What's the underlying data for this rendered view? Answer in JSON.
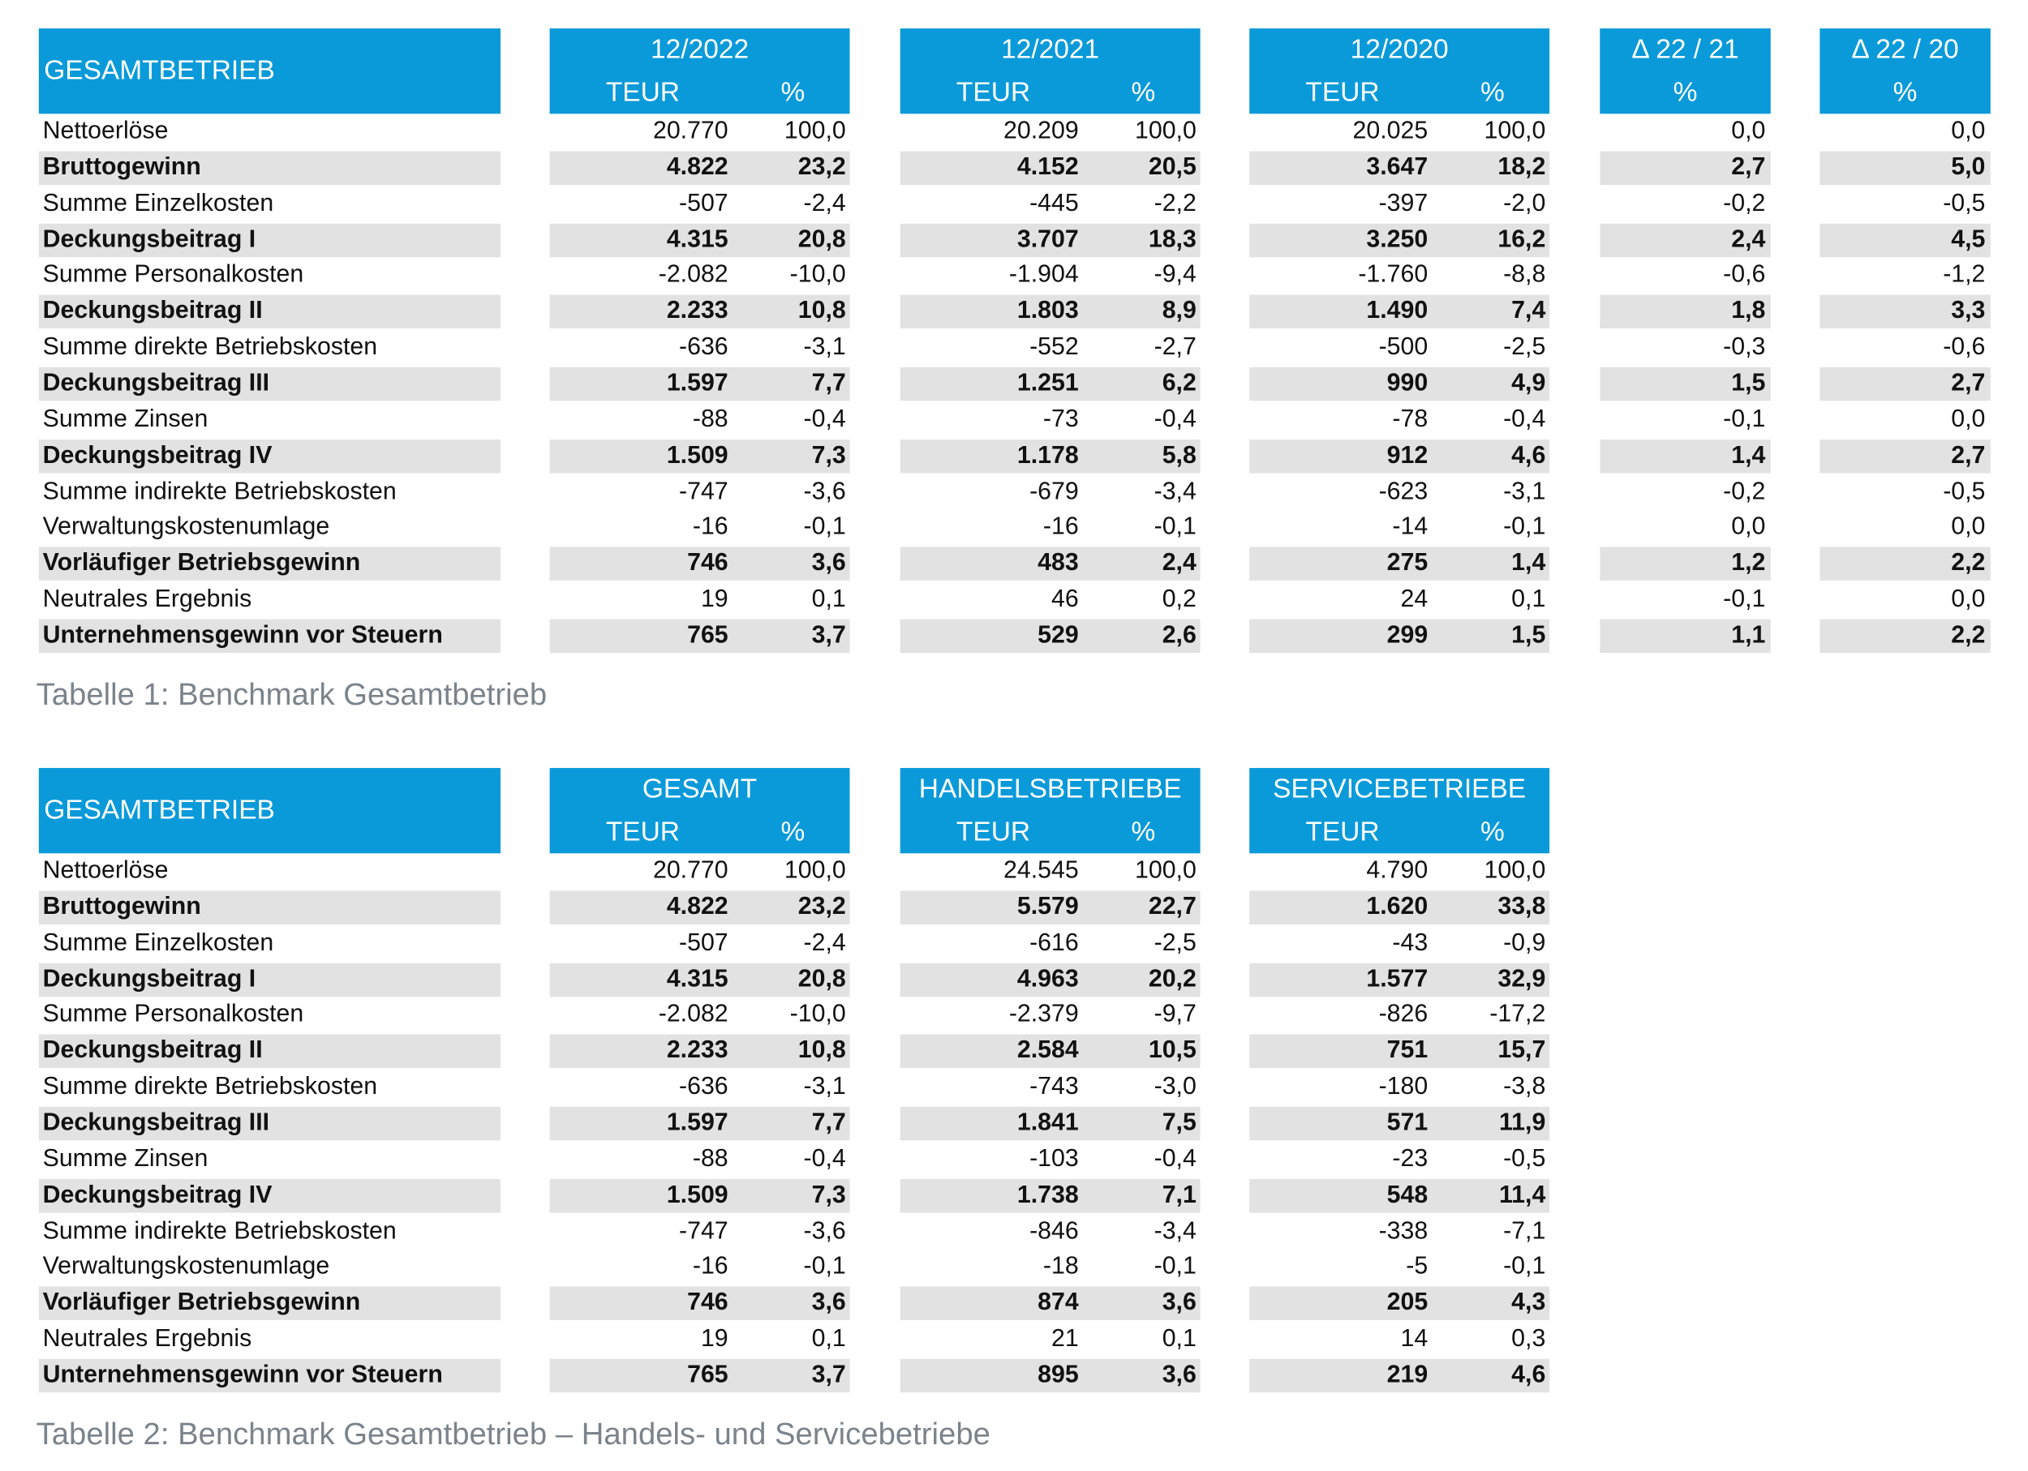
{
  "tables": [
    {
      "label": "GESAMTBETRIEB",
      "groups": [
        {
          "title": "12/2022",
          "columns": [
            "TEUR",
            "%"
          ]
        },
        {
          "title": "12/2021",
          "columns": [
            "TEUR",
            "%"
          ]
        },
        {
          "title": "12/2020",
          "columns": [
            "TEUR",
            "%"
          ]
        },
        {
          "title": "Δ 22 / 21",
          "columns": [
            "%"
          ]
        },
        {
          "title": "Δ 22 / 20",
          "columns": [
            "%"
          ]
        }
      ],
      "rows": [
        {
          "label": "Nettoerlöse",
          "bold": false,
          "values": [
            "20.770",
            "100,0",
            "20.209",
            "100,0",
            "20.025",
            "100,0",
            "0,0",
            "0,0"
          ]
        },
        {
          "label": "Bruttogewinn",
          "bold": true,
          "values": [
            "4.822",
            "23,2",
            "4.152",
            "20,5",
            "3.647",
            "18,2",
            "2,7",
            "5,0"
          ]
        },
        {
          "label": "Summe Einzelkosten",
          "bold": false,
          "values": [
            "-507",
            "-2,4",
            "-445",
            "-2,2",
            "-397",
            "-2,0",
            "-0,2",
            "-0,5"
          ]
        },
        {
          "label": "Deckungsbeitrag I",
          "bold": true,
          "values": [
            "4.315",
            "20,8",
            "3.707",
            "18,3",
            "3.250",
            "16,2",
            "2,4",
            "4,5"
          ]
        },
        {
          "label": "Summe Personalkosten",
          "bold": false,
          "values": [
            "-2.082",
            "-10,0",
            "-1.904",
            "-9,4",
            "-1.760",
            "-8,8",
            "-0,6",
            "-1,2"
          ]
        },
        {
          "label": "Deckungsbeitrag II",
          "bold": true,
          "values": [
            "2.233",
            "10,8",
            "1.803",
            "8,9",
            "1.490",
            "7,4",
            "1,8",
            "3,3"
          ]
        },
        {
          "label": "Summe direkte Betriebskosten",
          "bold": false,
          "values": [
            "-636",
            "-3,1",
            "-552",
            "-2,7",
            "-500",
            "-2,5",
            "-0,3",
            "-0,6"
          ]
        },
        {
          "label": "Deckungsbeitrag III",
          "bold": true,
          "values": [
            "1.597",
            "7,7",
            "1.251",
            "6,2",
            "990",
            "4,9",
            "1,5",
            "2,7"
          ]
        },
        {
          "label": "Summe Zinsen",
          "bold": false,
          "values": [
            "-88",
            "-0,4",
            "-73",
            "-0,4",
            "-78",
            "-0,4",
            "-0,1",
            "0,0"
          ]
        },
        {
          "label": "Deckungsbeitrag IV",
          "bold": true,
          "values": [
            "1.509",
            "7,3",
            "1.178",
            "5,8",
            "912",
            "4,6",
            "1,4",
            "2,7"
          ]
        },
        {
          "label": "Summe indirekte Betriebskosten",
          "bold": false,
          "values": [
            "-747",
            "-3,6",
            "-679",
            "-3,4",
            "-623",
            "-3,1",
            "-0,2",
            "-0,5"
          ]
        },
        {
          "label": "Verwaltungskostenumlage",
          "bold": false,
          "values": [
            "-16",
            "-0,1",
            "-16",
            "-0,1",
            "-14",
            "-0,1",
            "0,0",
            "0,0"
          ]
        },
        {
          "label": "Vorläufiger Betriebsgewinn",
          "bold": true,
          "values": [
            "746",
            "3,6",
            "483",
            "2,4",
            "275",
            "1,4",
            "1,2",
            "2,2"
          ]
        },
        {
          "label": "Neutrales Ergebnis",
          "bold": false,
          "values": [
            "19",
            "0,1",
            "46",
            "0,2",
            "24",
            "0,1",
            "-0,1",
            "0,0"
          ]
        },
        {
          "label": "Unternehmensgewinn vor Steuern",
          "bold": true,
          "values": [
            "765",
            "3,7",
            "529",
            "2,6",
            "299",
            "1,5",
            "1,1",
            "2,2"
          ]
        }
      ],
      "caption": "Tabelle 1: Benchmark Gesamtbetrieb"
    },
    {
      "label": "GESAMTBETRIEB",
      "groups": [
        {
          "title": "GESAMT",
          "columns": [
            "TEUR",
            "%"
          ]
        },
        {
          "title": "HANDELSBETRIEBE",
          "columns": [
            "TEUR",
            "%"
          ]
        },
        {
          "title": "SERVICEBETRIEBE",
          "columns": [
            "TEUR",
            "%"
          ]
        }
      ],
      "rows": [
        {
          "label": "Nettoerlöse",
          "bold": false,
          "values": [
            "20.770",
            "100,0",
            "24.545",
            "100,0",
            "4.790",
            "100,0"
          ]
        },
        {
          "label": "Bruttogewinn",
          "bold": true,
          "values": [
            "4.822",
            "23,2",
            "5.579",
            "22,7",
            "1.620",
            "33,8"
          ]
        },
        {
          "label": "Summe Einzelkosten",
          "bold": false,
          "values": [
            "-507",
            "-2,4",
            "-616",
            "-2,5",
            "-43",
            "-0,9"
          ]
        },
        {
          "label": "Deckungsbeitrag I",
          "bold": true,
          "values": [
            "4.315",
            "20,8",
            "4.963",
            "20,2",
            "1.577",
            "32,9"
          ]
        },
        {
          "label": "Summe Personalkosten",
          "bold": false,
          "values": [
            "-2.082",
            "-10,0",
            "-2.379",
            "-9,7",
            "-826",
            "-17,2"
          ]
        },
        {
          "label": "Deckungsbeitrag II",
          "bold": true,
          "values": [
            "2.233",
            "10,8",
            "2.584",
            "10,5",
            "751",
            "15,7"
          ]
        },
        {
          "label": "Summe direkte Betriebskosten",
          "bold": false,
          "values": [
            "-636",
            "-3,1",
            "-743",
            "-3,0",
            "-180",
            "-3,8"
          ]
        },
        {
          "label": "Deckungsbeitrag III",
          "bold": true,
          "values": [
            "1.597",
            "7,7",
            "1.841",
            "7,5",
            "571",
            "11,9"
          ]
        },
        {
          "label": "Summe Zinsen",
          "bold": false,
          "values": [
            "-88",
            "-0,4",
            "-103",
            "-0,4",
            "-23",
            "-0,5"
          ]
        },
        {
          "label": "Deckungsbeitrag IV",
          "bold": true,
          "values": [
            "1.509",
            "7,3",
            "1.738",
            "7,1",
            "548",
            "11,4"
          ]
        },
        {
          "label": "Summe indirekte Betriebskosten",
          "bold": false,
          "values": [
            "-747",
            "-3,6",
            "-846",
            "-3,4",
            "-338",
            "-7,1"
          ]
        },
        {
          "label": "Verwaltungskostenumlage",
          "bold": false,
          "values": [
            "-16",
            "-0,1",
            "-18",
            "-0,1",
            "-5",
            "-0,1"
          ]
        },
        {
          "label": "Vorläufiger Betriebsgewinn",
          "bold": true,
          "values": [
            "746",
            "3,6",
            "874",
            "3,6",
            "205",
            "4,3"
          ]
        },
        {
          "label": "Neutrales Ergebnis",
          "bold": false,
          "values": [
            "19",
            "0,1",
            "21",
            "0,1",
            "14",
            "0,3"
          ]
        },
        {
          "label": "Unternehmensgewinn vor Steuern",
          "bold": true,
          "values": [
            "765",
            "3,7",
            "895",
            "3,6",
            "219",
            "4,6"
          ]
        }
      ],
      "caption": "Tabelle 2: Benchmark Gesamtbetrieb – Handels- und Servicebetriebe"
    }
  ]
}
